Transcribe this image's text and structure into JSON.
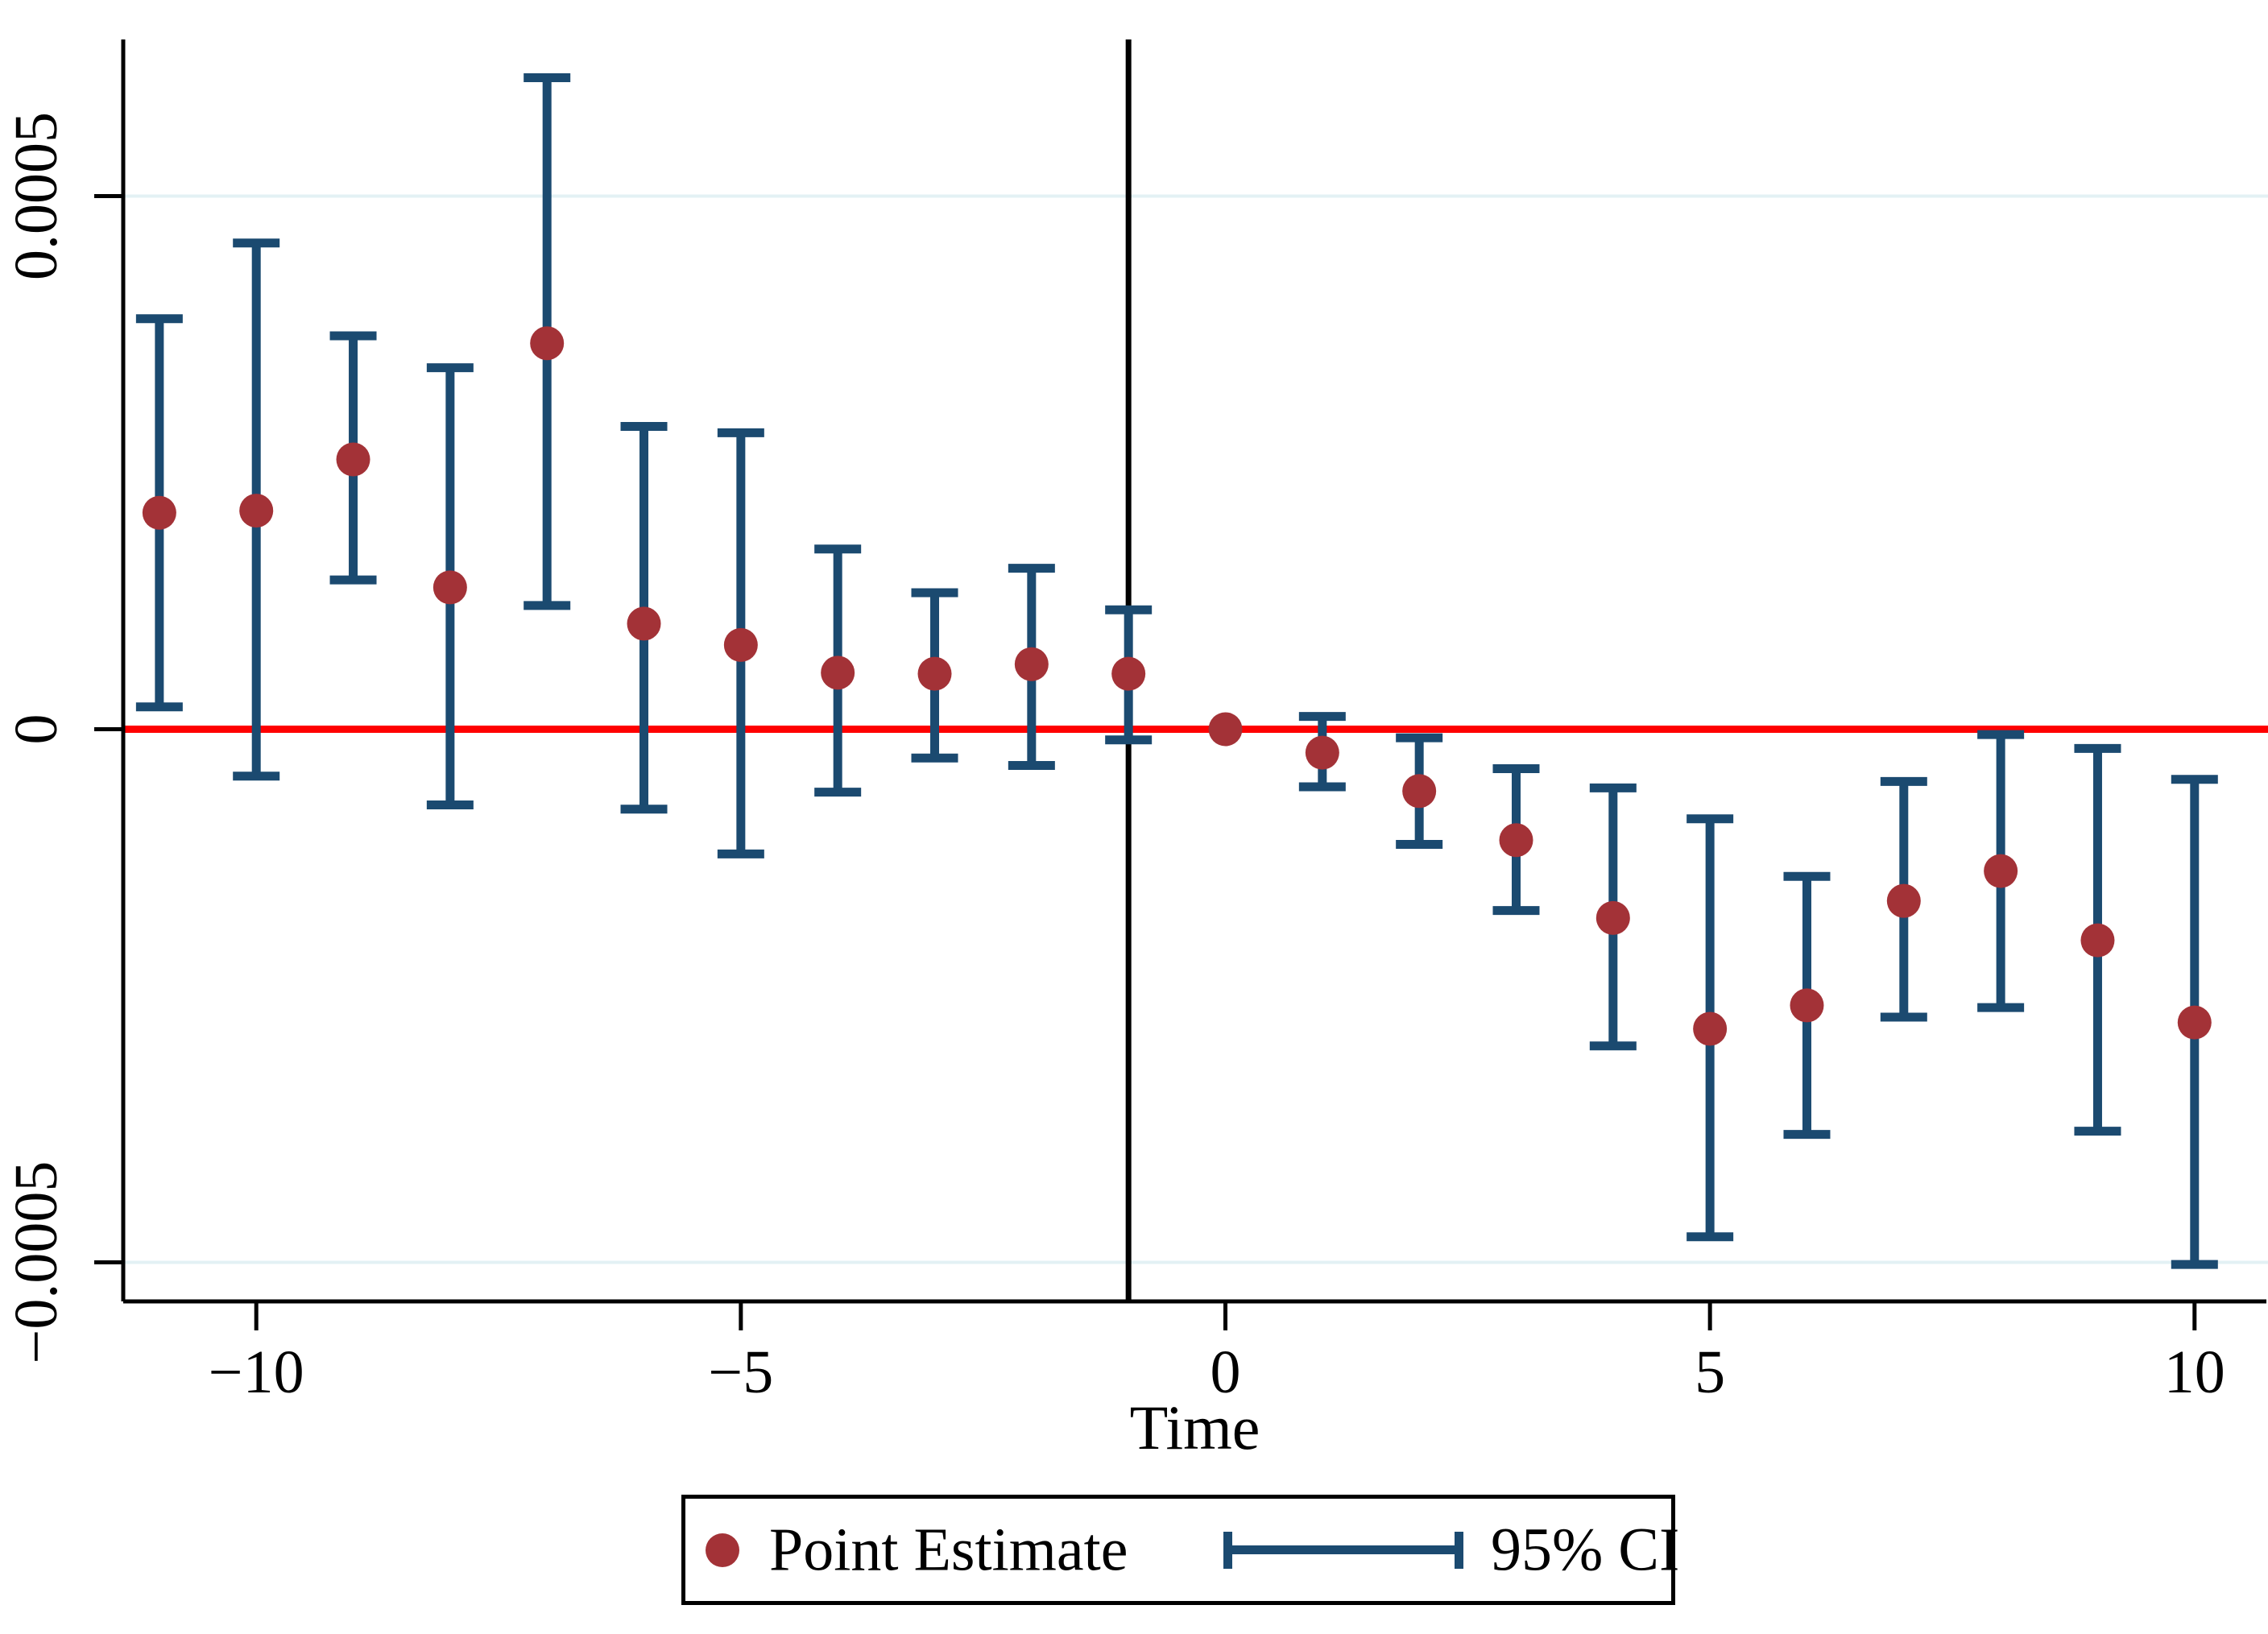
{
  "chart_data": {
    "type": "scatter",
    "subtype": "event-study-errorbar",
    "title": "",
    "xlabel": "Time",
    "ylabel": "",
    "xlim": [
      -11.8,
      10.8
    ],
    "ylim": [
      -0.000537,
      0.000647
    ],
    "grid": "horizontal-only",
    "gridline_values": [
      0.0005,
      -0.0005
    ],
    "zero_line_value": 0,
    "reference_line_x": -1,
    "x_ticks": [
      {
        "v": -10,
        "label": "−10"
      },
      {
        "v": -5,
        "label": "−5"
      },
      {
        "v": 0,
        "label": "0"
      },
      {
        "v": 5,
        "label": "5"
      },
      {
        "v": 10,
        "label": "10"
      }
    ],
    "y_ticks": [
      {
        "v": 0.0005,
        "label": "0.0005"
      },
      {
        "v": 0,
        "label": "0"
      },
      {
        "v": -0.0005,
        "label": "−0.0005"
      }
    ],
    "series": [
      {
        "name": "Point Estimate",
        "ci_name": "95% CI",
        "points": [
          {
            "t": -11,
            "est": 0.000203,
            "lo": 2.1e-05,
            "hi": 0.000385
          },
          {
            "t": -10,
            "est": 0.000205,
            "lo": -4.4e-05,
            "hi": 0.000456
          },
          {
            "t": -9,
            "est": 0.000253,
            "lo": 0.00014,
            "hi": 0.000369
          },
          {
            "t": -8,
            "est": 0.000133,
            "lo": -7.1e-05,
            "hi": 0.000339
          },
          {
            "t": -7,
            "est": 0.000362,
            "lo": 0.000116,
            "hi": 0.000611
          },
          {
            "t": -6,
            "est": 9.9e-05,
            "lo": -7.5e-05,
            "hi": 0.000284
          },
          {
            "t": -5,
            "est": 7.9e-05,
            "lo": -0.000117,
            "hi": 0.000278
          },
          {
            "t": -4,
            "est": 5.3e-05,
            "lo": -5.9e-05,
            "hi": 0.000169
          },
          {
            "t": -3,
            "est": 5.2e-05,
            "lo": -2.7e-05,
            "hi": 0.000128
          },
          {
            "t": -2,
            "est": 6.1e-05,
            "lo": -3.4e-05,
            "hi": 0.000151
          },
          {
            "t": -1,
            "est": 5.2e-05,
            "lo": -1e-05,
            "hi": 0.000112
          },
          {
            "t": 0,
            "est": 0.0,
            "lo": null,
            "hi": null
          },
          {
            "t": 1,
            "est": -2.2e-05,
            "lo": -5.4e-05,
            "hi": 1.2e-05
          },
          {
            "t": 2,
            "est": -5.8e-05,
            "lo": -0.000108,
            "hi": -8e-06
          },
          {
            "t": 3,
            "est": -0.000104,
            "lo": -0.00017,
            "hi": -3.7e-05
          },
          {
            "t": 4,
            "est": -0.000177,
            "lo": -0.000297,
            "hi": -5.5e-05
          },
          {
            "t": 5,
            "est": -0.000281,
            "lo": -0.000476,
            "hi": -8.4e-05
          },
          {
            "t": 6,
            "est": -0.000259,
            "lo": -0.00038,
            "hi": -0.000138
          },
          {
            "t": 7,
            "est": -0.000161,
            "lo": -0.00027,
            "hi": -4.9e-05
          },
          {
            "t": 8,
            "est": -0.000133,
            "lo": -0.000261,
            "hi": -5e-06
          },
          {
            "t": 9,
            "est": -0.000198,
            "lo": -0.000377,
            "hi": -1.8e-05
          },
          {
            "t": 10,
            "est": -0.000275,
            "lo": -0.000502,
            "hi": -4.7e-05
          }
        ]
      }
    ],
    "legend": {
      "position": "below-plot",
      "point_label": "Point Estimate",
      "ci_label": "95% CI"
    },
    "colors": {
      "point": "#A33237",
      "ci": "#1B4A70",
      "zero_line": "#FF0000",
      "reference_line": "#000000",
      "gridline": "#E3F1F4",
      "axis": "#000000",
      "background": "#FFFFFF"
    }
  }
}
